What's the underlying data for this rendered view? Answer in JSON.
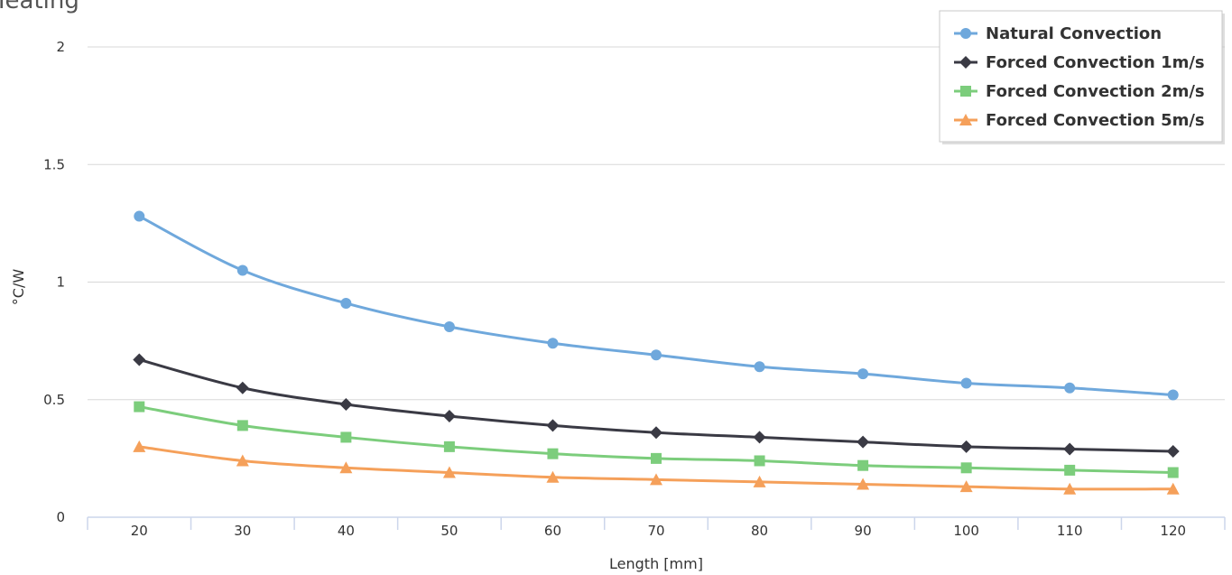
{
  "chart_data": {
    "type": "line",
    "title": "Heating",
    "xlabel": "Length [mm]",
    "ylabel": "°C/W",
    "categories": [
      "20",
      "30",
      "40",
      "50",
      "60",
      "70",
      "80",
      "90",
      "100",
      "110",
      "120"
    ],
    "ylim": [
      0,
      2
    ],
    "yticks": [
      "0",
      "0.5",
      "1",
      "1.5",
      "2"
    ],
    "grid": true,
    "legend_position": "top-right",
    "series": [
      {
        "name": "Natural Convection",
        "color": "#6fa8dc",
        "marker": "circle",
        "values": [
          1.28,
          1.05,
          0.91,
          0.81,
          0.74,
          0.69,
          0.64,
          0.61,
          0.57,
          0.55,
          0.52
        ]
      },
      {
        "name": "Forced Convection 1m/s",
        "color": "#3a3a44",
        "marker": "diamond",
        "values": [
          0.67,
          0.55,
          0.48,
          0.43,
          0.39,
          0.36,
          0.34,
          0.32,
          0.3,
          0.29,
          0.28
        ]
      },
      {
        "name": "Forced Convection 2m/s",
        "color": "#7ccd7c",
        "marker": "square",
        "values": [
          0.47,
          0.39,
          0.34,
          0.3,
          0.27,
          0.25,
          0.24,
          0.22,
          0.21,
          0.2,
          0.19
        ]
      },
      {
        "name": "Forced Convection 5m/s",
        "color": "#f5a05a",
        "marker": "triangle",
        "values": [
          0.3,
          0.24,
          0.21,
          0.19,
          0.17,
          0.16,
          0.15,
          0.14,
          0.13,
          0.12,
          0.12
        ]
      }
    ]
  }
}
